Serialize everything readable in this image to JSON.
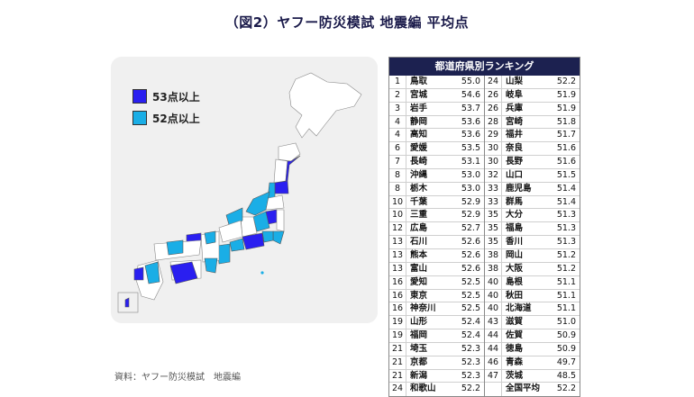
{
  "title": "（図2）ヤフー防災模試 地震編 平均点",
  "source": "資料：ヤフー防災模試　地震編",
  "colors": {
    "tier1": "#2a1ff0",
    "tier2": "#1aaee6",
    "base": "#ffffff",
    "header": "#1c2150"
  },
  "legend": [
    {
      "label": "53点以上",
      "color": "#2a1ff0"
    },
    {
      "label": "52点以上",
      "color": "#1aaee6"
    }
  ],
  "chart_data": {
    "type": "table",
    "title": "都道府県別ランキング",
    "columns": [
      "rank",
      "prefecture",
      "score"
    ],
    "rows": [
      {
        "rank": "1",
        "name": "鳥取",
        "score": "55.0"
      },
      {
        "rank": "2",
        "name": "宮城",
        "score": "54.6"
      },
      {
        "rank": "3",
        "name": "岩手",
        "score": "53.7"
      },
      {
        "rank": "4",
        "name": "静岡",
        "score": "53.6"
      },
      {
        "rank": "4",
        "name": "高知",
        "score": "53.6"
      },
      {
        "rank": "6",
        "name": "愛媛",
        "score": "53.5"
      },
      {
        "rank": "7",
        "name": "長崎",
        "score": "53.1"
      },
      {
        "rank": "8",
        "name": "沖縄",
        "score": "53.0"
      },
      {
        "rank": "8",
        "name": "栃木",
        "score": "53.0"
      },
      {
        "rank": "10",
        "name": "千葉",
        "score": "52.9"
      },
      {
        "rank": "10",
        "name": "三重",
        "score": "52.9"
      },
      {
        "rank": "12",
        "name": "広島",
        "score": "52.7"
      },
      {
        "rank": "13",
        "name": "石川",
        "score": "52.6"
      },
      {
        "rank": "13",
        "name": "熊本",
        "score": "52.6"
      },
      {
        "rank": "13",
        "name": "富山",
        "score": "52.6"
      },
      {
        "rank": "16",
        "name": "愛知",
        "score": "52.5"
      },
      {
        "rank": "16",
        "name": "東京",
        "score": "52.5"
      },
      {
        "rank": "16",
        "name": "神奈川",
        "score": "52.5"
      },
      {
        "rank": "19",
        "name": "山形",
        "score": "52.4"
      },
      {
        "rank": "19",
        "name": "福岡",
        "score": "52.4"
      },
      {
        "rank": "21",
        "name": "埼玉",
        "score": "52.3"
      },
      {
        "rank": "21",
        "name": "京都",
        "score": "52.3"
      },
      {
        "rank": "21",
        "name": "新潟",
        "score": "52.3"
      },
      {
        "rank": "24",
        "name": "和歌山",
        "score": "52.2"
      },
      {
        "rank": "24",
        "name": "山梨",
        "score": "52.2"
      },
      {
        "rank": "26",
        "name": "岐阜",
        "score": "51.9"
      },
      {
        "rank": "26",
        "name": "兵庫",
        "score": "51.9"
      },
      {
        "rank": "28",
        "name": "宮崎",
        "score": "51.8"
      },
      {
        "rank": "29",
        "name": "福井",
        "score": "51.7"
      },
      {
        "rank": "30",
        "name": "奈良",
        "score": "51.6"
      },
      {
        "rank": "30",
        "name": "長野",
        "score": "51.6"
      },
      {
        "rank": "32",
        "name": "山口",
        "score": "51.5"
      },
      {
        "rank": "33",
        "name": "鹿児島",
        "score": "51.4"
      },
      {
        "rank": "33",
        "name": "群馬",
        "score": "51.4"
      },
      {
        "rank": "35",
        "name": "大分",
        "score": "51.3"
      },
      {
        "rank": "35",
        "name": "福島",
        "score": "51.3"
      },
      {
        "rank": "35",
        "name": "香川",
        "score": "51.3"
      },
      {
        "rank": "38",
        "name": "岡山",
        "score": "51.2"
      },
      {
        "rank": "38",
        "name": "大阪",
        "score": "51.2"
      },
      {
        "rank": "40",
        "name": "島根",
        "score": "51.1"
      },
      {
        "rank": "40",
        "name": "秋田",
        "score": "51.1"
      },
      {
        "rank": "40",
        "name": "北海道",
        "score": "51.1"
      },
      {
        "rank": "43",
        "name": "滋賀",
        "score": "51.0"
      },
      {
        "rank": "44",
        "name": "佐賀",
        "score": "50.9"
      },
      {
        "rank": "44",
        "name": "徳島",
        "score": "50.9"
      },
      {
        "rank": "46",
        "name": "青森",
        "score": "49.7"
      },
      {
        "rank": "47",
        "name": "茨城",
        "score": "48.5"
      },
      {
        "rank": "",
        "name": "全国平均",
        "score": "52.2"
      }
    ]
  }
}
